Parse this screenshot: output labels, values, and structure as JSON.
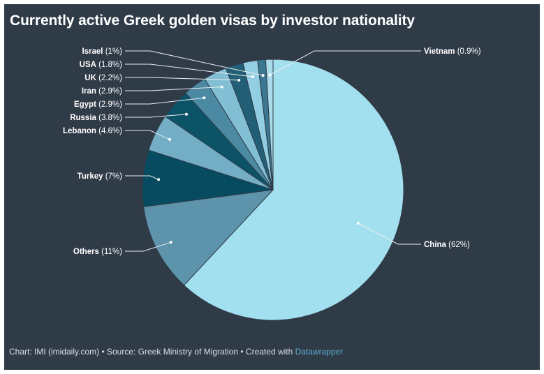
{
  "title": "Currently active Greek golden visas by investor nationality",
  "footer": {
    "text": "Chart: IMI (imidaily.com) • Source: Greek Ministry of Migration • Created with ",
    "link_text": "Datawrapper"
  },
  "chart_data": {
    "type": "pie",
    "title": "Currently active Greek golden visas by investor nationality",
    "slices": [
      {
        "label": "China",
        "value": 62,
        "display": "(62%)",
        "color": "#a3e0ef"
      },
      {
        "label": "Others",
        "value": 11,
        "display": "(11%)",
        "color": "#5e93ac"
      },
      {
        "label": "Turkey",
        "value": 7,
        "display": "(7%)",
        "color": "#064b60"
      },
      {
        "label": "Lebanon",
        "value": 4.6,
        "display": "(4.6%)",
        "color": "#73aec6"
      },
      {
        "label": "Russia",
        "value": 3.8,
        "display": "(3.8%)",
        "color": "#0d5368"
      },
      {
        "label": "Egypt",
        "value": 2.9,
        "display": "(2.9%)",
        "color": "#4c8aa3"
      },
      {
        "label": "Iran",
        "value": 2.9,
        "display": "(2.9%)",
        "color": "#82bfd5"
      },
      {
        "label": "UK",
        "value": 2.2,
        "display": "(2.2%)",
        "color": "#225f76"
      },
      {
        "label": "USA",
        "value": 1.8,
        "display": "(1.8%)",
        "color": "#93cfe2"
      },
      {
        "label": "Israel",
        "value": 1,
        "display": "(1%)",
        "color": "#3c7791"
      },
      {
        "label": "Vietnam",
        "value": 0.9,
        "display": "(0.9%)",
        "color": "#a9dbea"
      }
    ]
  }
}
